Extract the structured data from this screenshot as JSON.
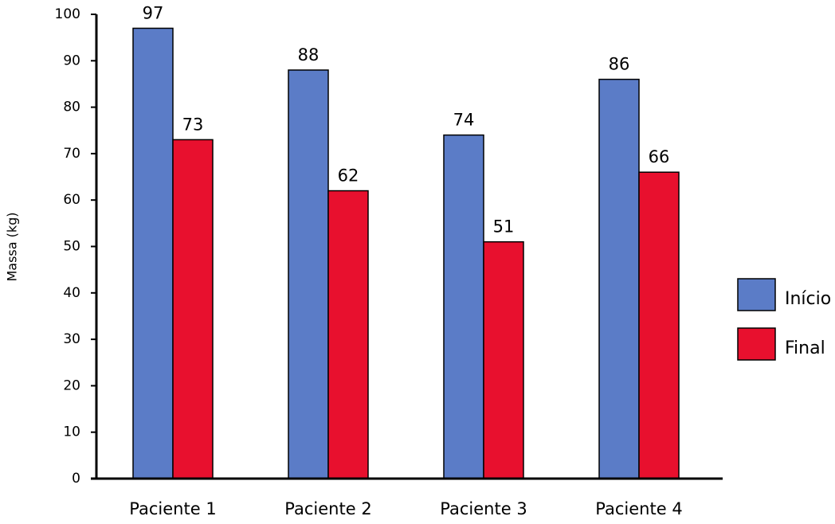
{
  "chart_data": {
    "type": "bar",
    "y_label": "Massa (kg)",
    "categories": [
      "Paciente 1",
      "Paciente 2",
      "Paciente 3",
      "Paciente 4"
    ],
    "series": [
      {
        "name": "Início",
        "color": "#5b7cc7",
        "values": [
          97,
          88,
          74,
          86
        ]
      },
      {
        "name": "Final",
        "color": "#e8102e",
        "values": [
          73,
          62,
          51,
          66
        ]
      }
    ],
    "ylim": [
      0,
      100
    ],
    "yticks": [
      0,
      10,
      20,
      30,
      40,
      50,
      60,
      70,
      80,
      90,
      100
    ],
    "legend": "right",
    "grid": false
  }
}
